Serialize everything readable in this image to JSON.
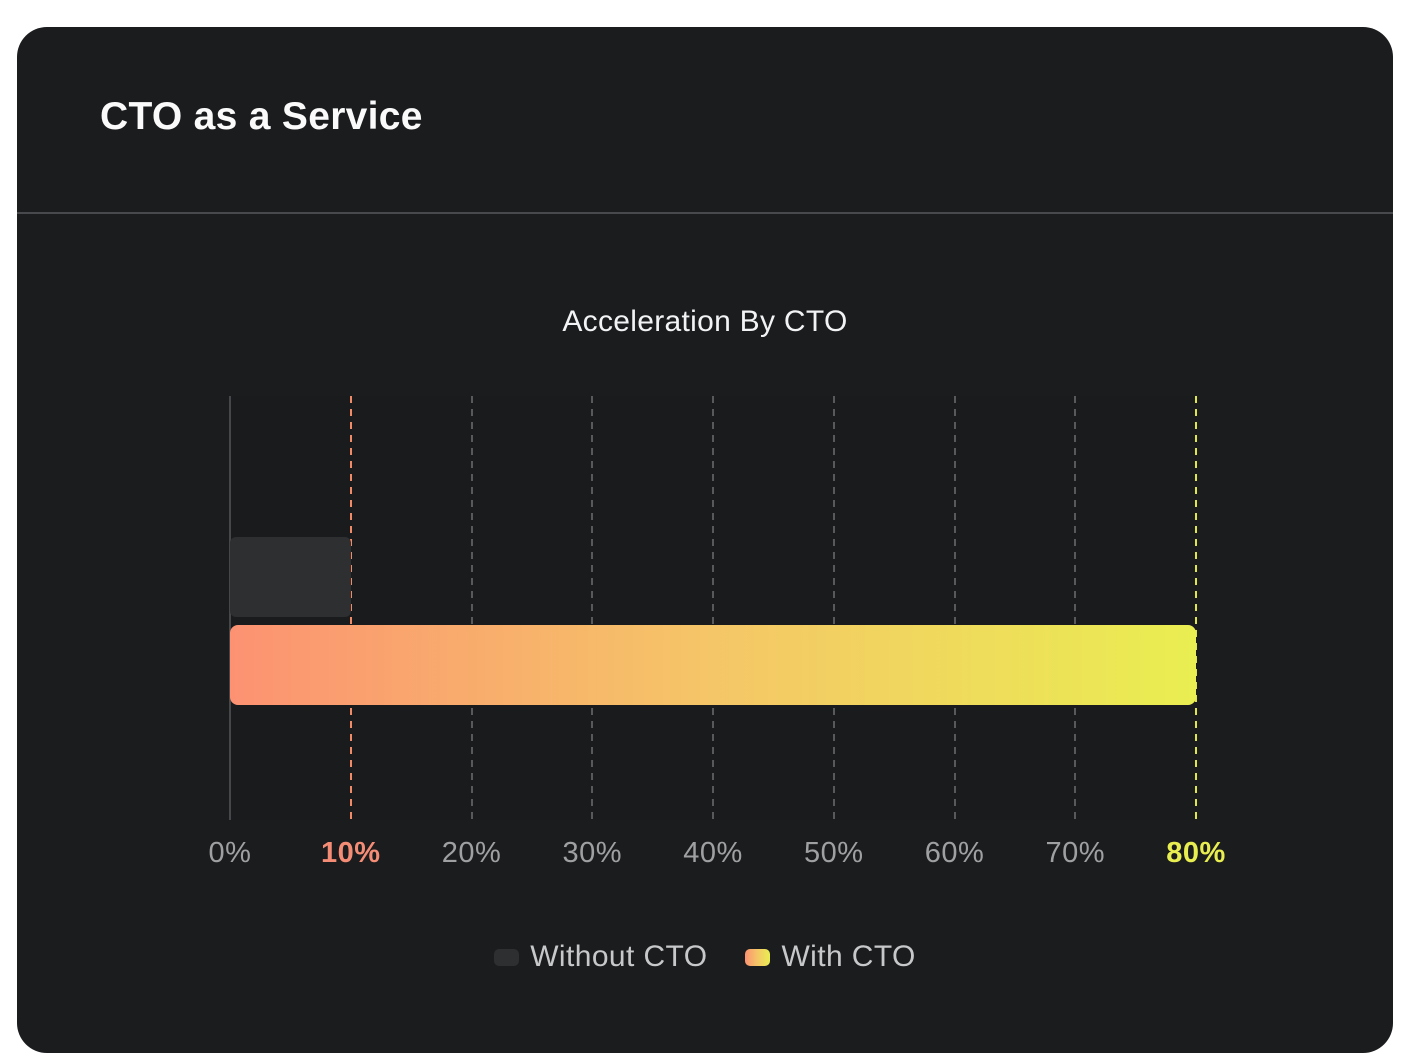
{
  "card": {
    "title": "CTO as a Service"
  },
  "chart_data": {
    "type": "bar",
    "orientation": "horizontal",
    "title": "Acceleration By CTO",
    "xlabel": "",
    "ylabel": "",
    "xlim": [
      0,
      80
    ],
    "grid": "vertical-dashed",
    "legend_position": "bottom",
    "categories": [
      "Acceleration"
    ],
    "series": [
      {
        "name": "Without CTO",
        "value": 10,
        "color": "#2e2f30"
      },
      {
        "name": "With CTO",
        "value": 80,
        "gradient": [
          "#FC9272",
          "#F5C667",
          "#E9EE51"
        ]
      }
    ],
    "axis": {
      "ticks": [
        {
          "label": "0%",
          "line": "solid",
          "line_color": "#45474a",
          "label_color": "#9ea0a2",
          "bold": false
        },
        {
          "label": "10%",
          "line": "dashed",
          "line_color": "#f08a67",
          "label_color": "#f58c75",
          "bold": true
        },
        {
          "label": "20%",
          "line": "dashed",
          "line_color": "#57595b",
          "label_color": "#9ea0a2",
          "bold": false
        },
        {
          "label": "30%",
          "line": "dashed",
          "line_color": "#57595b",
          "label_color": "#9ea0a2",
          "bold": false
        },
        {
          "label": "40%",
          "line": "dashed",
          "line_color": "#57595b",
          "label_color": "#9ea0a2",
          "bold": false
        },
        {
          "label": "50%",
          "line": "dashed",
          "line_color": "#57595b",
          "label_color": "#9ea0a2",
          "bold": false
        },
        {
          "label": "60%",
          "line": "dashed",
          "line_color": "#57595b",
          "label_color": "#9ea0a2",
          "bold": false
        },
        {
          "label": "70%",
          "line": "dashed",
          "line_color": "#57595b",
          "label_color": "#9ea0a2",
          "bold": false
        },
        {
          "label": "80%",
          "line": "dashed",
          "line_color": "#dfe64a",
          "label_color": "#e8ee50",
          "bold": true
        }
      ]
    }
  }
}
